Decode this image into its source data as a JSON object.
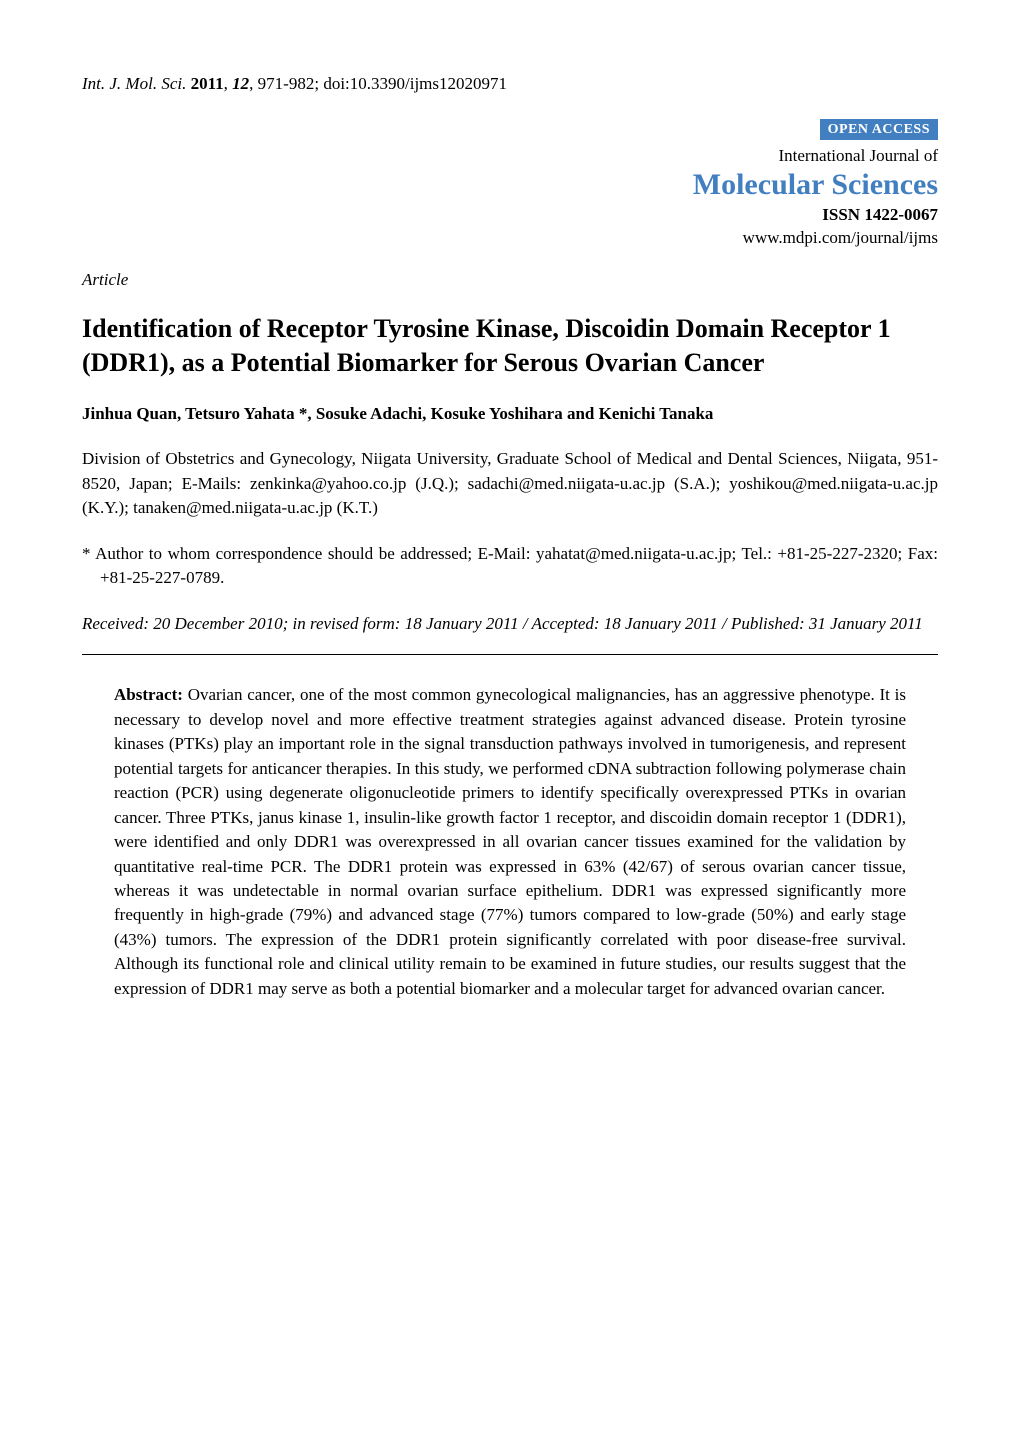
{
  "header": {
    "journal_abbrev": "Int. J. Mol. Sci.",
    "year": "2011",
    "volume": "12",
    "pages": "971-982",
    "doi_label": "doi:",
    "doi": "10.3390/ijms12020971"
  },
  "open_access": "OPEN ACCESS",
  "journal": {
    "intl": "International Journal of",
    "name": "Molecular Sciences",
    "issn_label": "ISSN",
    "issn": "1422-0067",
    "url": "www.mdpi.com/journal/ijms"
  },
  "article_type": "Article",
  "title": "Identification of Receptor Tyrosine Kinase, Discoidin Domain Receptor 1 (DDR1), as a Potential Biomarker for Serous Ovarian Cancer",
  "authors": "Jinhua Quan, Tetsuro Yahata *, Sosuke Adachi, Kosuke Yoshihara and Kenichi Tanaka",
  "affiliation": "Division of Obstetrics and Gynecology, Niigata University, Graduate School of Medical and Dental Sciences, Niigata, 951-8520, Japan; E-Mails: zenkinka@yahoo.co.jp (J.Q.); sadachi@med.niigata-u.ac.jp (S.A.); yoshikou@med.niigata-u.ac.jp (K.Y.); tanaken@med.niigata-u.ac.jp (K.T.)",
  "correspondence": "*  Author to whom correspondence should be addressed; E-Mail: yahatat@med.niigata-u.ac.jp; Tel.: +81-25-227-2320; Fax: +81-25-227-0789.",
  "dates": "Received: 20 December 2010; in revised form: 18 January 2011 / Accepted: 18 January 2011 / Published: 31 January 2011",
  "abstract": {
    "label": "Abstract:",
    "text": " Ovarian cancer, one of the most common gynecological malignancies, has an aggressive phenotype. It is necessary to develop novel and more effective treatment strategies against advanced disease. Protein tyrosine kinases (PTKs) play an important role in the signal transduction pathways involved in tumorigenesis, and represent potential targets for anticancer therapies. In this study, we performed cDNA subtraction following polymerase chain reaction (PCR) using degenerate oligonucleotide primers to identify specifically overexpressed PTKs in ovarian cancer. Three PTKs, janus kinase 1, insulin-like growth factor 1 receptor, and discoidin domain receptor 1 (DDR1), were identified and only DDR1 was overexpressed in all ovarian cancer tissues examined for the validation by quantitative real-time PCR. The DDR1 protein was expressed in 63% (42/67) of serous ovarian cancer tissue, whereas it was undetectable in normal ovarian surface epithelium. DDR1 was expressed significantly more frequently in high-grade (79%) and advanced stage (77%) tumors compared to low-grade (50%) and early stage (43%) tumors. The expression of the DDR1 protein significantly correlated with poor disease-free survival. Although its functional role and clinical utility remain to be examined in future studies, our results suggest that the expression of DDR1 may serve as both a potential biomarker and a molecular target for advanced ovarian cancer."
  },
  "colors": {
    "brand": "#427fc0",
    "text": "#000000",
    "background": "#ffffff",
    "rule": "#000000"
  }
}
